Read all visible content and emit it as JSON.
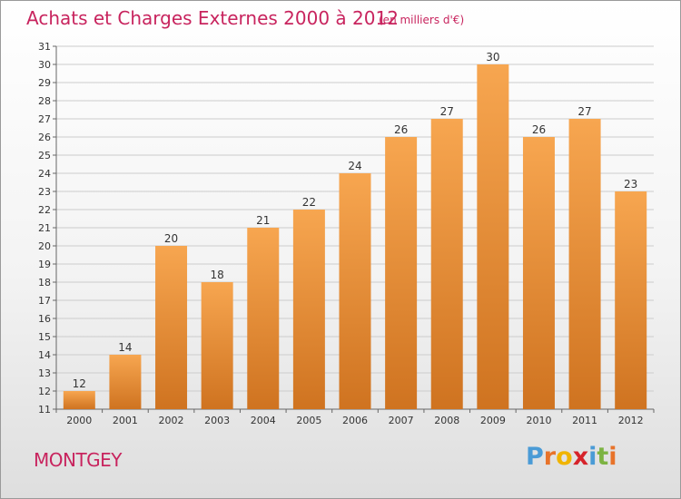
{
  "header": {
    "title": "Achats et Charges Externes 2000 à 2012",
    "unit": "(en milliers d'€)"
  },
  "footer": {
    "commune": "MONTGEY",
    "brand": "Proxiti",
    "brand_letters": [
      "P",
      "r",
      "o",
      "x",
      "i",
      "t",
      "i"
    ],
    "brand_colors": [
      "#4a9bd6",
      "#e8732a",
      "#f0b400",
      "#d6232a",
      "#4a9bd6",
      "#7cb342",
      "#e8732a"
    ]
  },
  "colors": {
    "title": "#c8245e",
    "bar_light": "#f7a650",
    "bar_dark": "#cf7320",
    "grid": "#cccccc"
  },
  "chart_data": {
    "type": "bar",
    "title": "Achats et Charges Externes 2000 à 2012",
    "subtitle": "(en milliers d'€)",
    "categories": [
      "2000",
      "2001",
      "2002",
      "2003",
      "2004",
      "2005",
      "2006",
      "2007",
      "2008",
      "2009",
      "2010",
      "2011",
      "2012"
    ],
    "values": [
      12,
      14,
      20,
      18,
      21,
      22,
      24,
      26,
      27,
      30,
      26,
      27,
      23
    ],
    "ylim": [
      11,
      31
    ],
    "yticks": [
      11,
      12,
      13,
      14,
      15,
      16,
      17,
      18,
      19,
      20,
      21,
      22,
      23,
      24,
      25,
      26,
      27,
      28,
      29,
      30,
      31
    ],
    "grid": true,
    "legend": "none"
  }
}
